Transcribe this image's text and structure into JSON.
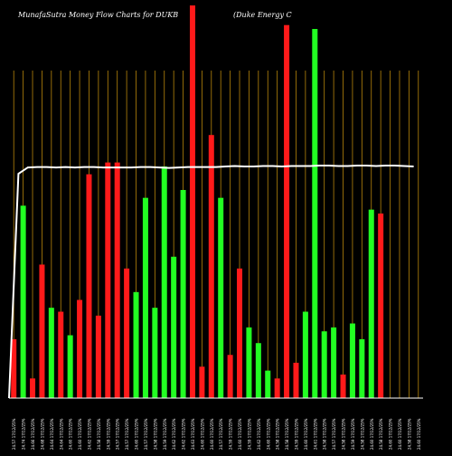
{
  "header": {
    "title_left": "MunafaSutra  Money Flow  Charts for DUKB",
    "title_right": "(Duke   Energy C"
  },
  "colors": {
    "background": "#000000",
    "up": "#22ff22",
    "down": "#ff1a1a",
    "grid": "#b8860b",
    "line": "#ffffff",
    "baseline": "#ffffff",
    "label": "#ffffff"
  },
  "chart_data": {
    "type": "bar",
    "title": "MunafaSutra  Money Flow  Charts for DUKB (Duke   Energy C",
    "grid": "vertical",
    "categories": [
      "24.57 17/12/25%",
      "24.74 17/12/25%",
      "24.66 17/12/25%",
      "24.68 17/12/25%",
      "24.64 17/12/25%",
      "24.64 17/12/25%",
      "24.60 17/12/25%",
      "24.60 17/12/25%",
      "24.62 17/12/25%",
      "24.58 17/12/25%",
      "24.59 17/12/25%",
      "24.57 17/12/25%",
      "24.57 17/12/25%",
      "24.60 17/12/25%",
      "24.57 17/12/25%",
      "24.58 17/12/25%",
      "24.59 17/12/25%",
      "24.62 17/12/25%",
      "24.62 17/12/25%",
      "24.63 17/12/25%",
      "24.60 17/12/25%",
      "24.60 17/12/25%",
      "24.57 17/12/25%",
      "24.59 17/12/25%",
      "24.60 17/12/25%",
      "24.59 17/12/25%",
      "24.62 17/12/25%",
      "24.60 17/12/25%",
      "24.58 17/12/25%",
      "24.58 17/12/25%",
      "24.59 17/12/25%",
      "24.60 17/12/25%",
      "24.61 17/12/25%",
      "24.58 17/12/25%",
      "24.57 17/12/25%",
      "24.58 17/12/25%",
      "24.59 17/12/25%",
      "24.58 17/12/25%",
      "24.60 17/12/25%",
      "24.58 17/12/25%",
      "24.60 17/12/25%",
      "24.60 17/12/25%",
      "24.58 17/12/25%",
      "24.60 17/12/25%"
    ],
    "values": [
      15,
      49,
      5,
      34,
      23,
      22,
      16,
      25,
      57,
      21,
      60,
      60,
      33,
      27,
      51,
      23,
      59,
      36,
      53,
      100,
      8,
      67,
      51,
      11,
      33,
      18,
      14,
      7,
      5,
      95,
      9,
      22,
      94,
      17,
      18,
      6,
      19,
      15,
      48,
      47,
      0,
      0,
      0,
      0
    ],
    "directions": [
      "down",
      "up",
      "down",
      "down",
      "up",
      "down",
      "up",
      "down",
      "down",
      "down",
      "down",
      "down",
      "down",
      "up",
      "up",
      "up",
      "up",
      "up",
      "up",
      "down",
      "down",
      "down",
      "up",
      "down",
      "down",
      "up",
      "up",
      "up",
      "down",
      "down",
      "down",
      "up",
      "up",
      "up",
      "up",
      "down",
      "up",
      "up",
      "up",
      "down",
      "none",
      "none",
      "none",
      "none"
    ],
    "price_line": [
      1.0,
      0.0,
      0.96,
      0.97,
      0.97,
      0.96,
      0.97,
      0.96,
      0.97,
      0.97,
      0.96,
      0.96,
      0.96,
      0.96,
      0.97,
      0.97,
      0.96,
      0.95,
      0.96,
      0.97,
      0.97,
      0.97,
      0.97,
      0.98,
      0.99,
      0.98,
      0.98,
      0.99,
      0.99,
      0.98,
      0.99,
      0.99,
      0.99,
      1.0,
      1.0,
      0.99,
      0.99,
      1.0,
      1.0,
      0.99,
      1.0,
      1.0,
      0.99,
      0.98
    ],
    "ylim": [
      0,
      100
    ],
    "xlabel": "",
    "ylabel": ""
  }
}
